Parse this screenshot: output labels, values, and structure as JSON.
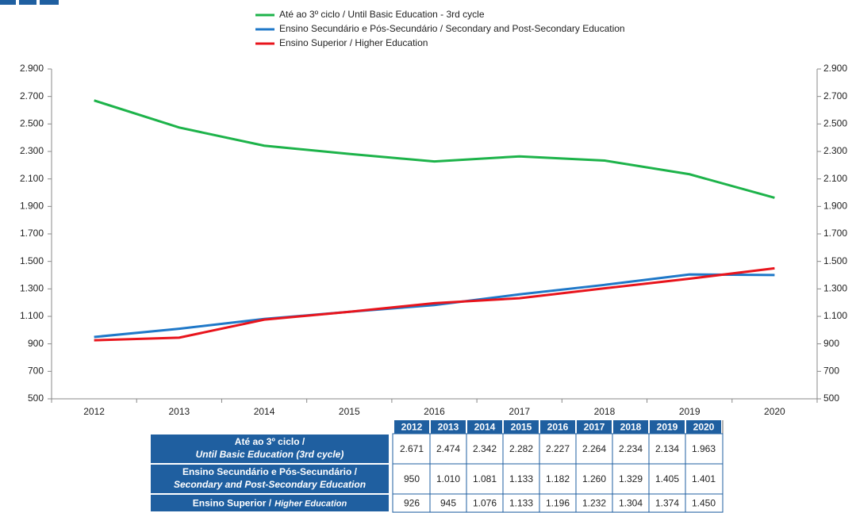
{
  "chart_data": {
    "type": "line",
    "categories": [
      "2012",
      "2013",
      "2014",
      "2015",
      "2016",
      "2017",
      "2018",
      "2019",
      "2020"
    ],
    "series": [
      {
        "name": "Até ao 3º ciclo / Until Basic Education - 3rd cycle",
        "color": "#1db34a",
        "values": [
          2671,
          2474,
          2342,
          2282,
          2227,
          2264,
          2234,
          2134,
          1963
        ],
        "value_labels": [
          "2.671",
          "2.474",
          "2.342",
          "2.282",
          "2.227",
          "2.264",
          "2.234",
          "2.134",
          "1.963"
        ]
      },
      {
        "name": "Ensino Secundário e Pós-Secundário / Secondary and Post-Secondary Education",
        "color": "#1f78c8",
        "values": [
          950,
          1010,
          1081,
          1133,
          1182,
          1260,
          1329,
          1405,
          1401
        ],
        "value_labels": [
          "950",
          "1.010",
          "1.081",
          "1.133",
          "1.182",
          "1.260",
          "1.329",
          "1.405",
          "1.401"
        ]
      },
      {
        "name": "Ensino Superior / Higher Education",
        "color": "#e8141c",
        "values": [
          926,
          945,
          1076,
          1133,
          1196,
          1232,
          1304,
          1374,
          1450
        ],
        "value_labels": [
          "926",
          "945",
          "1.076",
          "1.133",
          "1.196",
          "1.232",
          "1.304",
          "1.374",
          "1.450"
        ]
      }
    ],
    "ylim": [
      500,
      2900
    ],
    "yticks": [
      500,
      700,
      900,
      {
        "value": 1100,
        "label": "1.100"
      },
      {
        "value": 1300,
        "label": "1.300"
      },
      {
        "value": 1500,
        "label": "1.500"
      },
      {
        "value": 1700,
        "label": "1.700"
      },
      {
        "value": 1900,
        "label": "1.900"
      },
      {
        "value": 2100,
        "label": "2.100"
      },
      {
        "value": 2300,
        "label": "2.300"
      },
      {
        "value": 2500,
        "label": "2.500"
      },
      {
        "value": 2700,
        "label": "2.700"
      },
      {
        "value": 2900,
        "label": "2.900"
      }
    ],
    "y2lim": [
      500,
      2900
    ],
    "y2ticks": [
      500,
      700,
      900,
      {
        "value": 1100,
        "label": "1.100"
      },
      {
        "value": 1300,
        "label": "1.300"
      },
      {
        "value": 1500,
        "label": "1.500"
      },
      {
        "value": 1700,
        "label": "1.700"
      },
      {
        "value": 1900,
        "label": "1.900"
      },
      {
        "value": 2100,
        "label": "2.100"
      },
      {
        "value": 2300,
        "label": "2.300"
      },
      {
        "value": 2500,
        "label": "2.500"
      },
      {
        "value": 2700,
        "label": "2.700"
      },
      {
        "value": 2900,
        "label": "2.900"
      }
    ],
    "grid": false,
    "table_rows": [
      [
        "Até ao 3º ciclo /",
        "Until Basic Education (3rd cycle)"
      ],
      [
        "Ensino Secundário e Pós-Secundário /",
        "Secondary and Post-Secondary Education"
      ],
      [
        "Ensino Superior /",
        "Higher Education"
      ]
    ]
  }
}
